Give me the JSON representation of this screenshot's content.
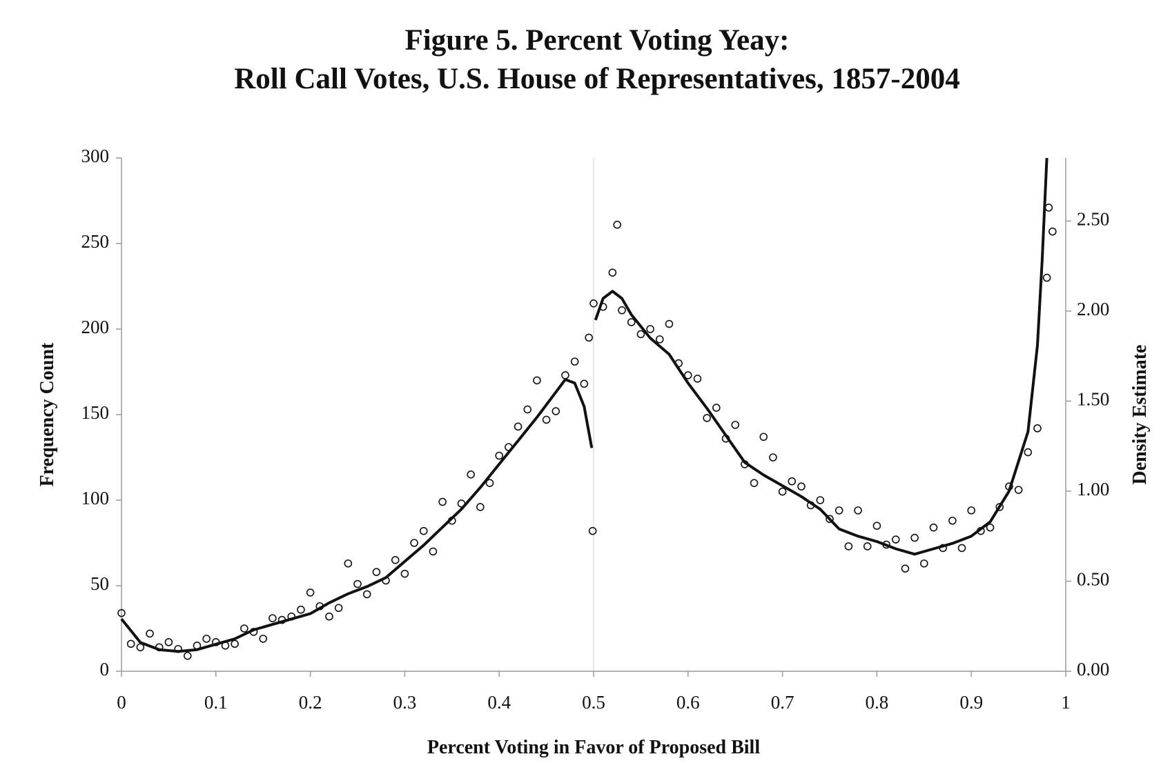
{
  "chart_data": {
    "type": "scatter",
    "title": [
      "Figure 5. Percent Voting Yeay:",
      "Roll Call Votes, U.S. House of Representatives, 1857-2004"
    ],
    "xlabel": "Percent Voting in Favor of Proposed Bill",
    "ylabel": "Frequency Count",
    "y2label": "Density Estimate",
    "xlim": [
      0,
      1
    ],
    "xticks": [
      0,
      0.1,
      0.2,
      0.3,
      0.4,
      0.5,
      0.6,
      0.7,
      0.8,
      0.9,
      1
    ],
    "ylim": [
      0,
      300
    ],
    "yticks": [
      0,
      50,
      100,
      150,
      200,
      250,
      300
    ],
    "y2lim": [
      0,
      2.85
    ],
    "y2ticks": [
      {
        "value": 0,
        "label": "0.00"
      },
      {
        "value": 0.5,
        "label": "0.50"
      },
      {
        "value": 1,
        "label": "1.00"
      },
      {
        "value": 1.5,
        "label": "1.50"
      },
      {
        "value": 2,
        "label": "2.00"
      },
      {
        "value": 2.5,
        "label": "2.50"
      }
    ],
    "vline": 0.5,
    "grid": false,
    "series": [
      {
        "type": "scatter",
        "color": "#111111",
        "x": [
          0,
          0.01,
          0.02,
          0.03,
          0.04,
          0.05,
          0.06,
          0.07,
          0.08,
          0.09,
          0.1,
          0.11,
          0.12,
          0.13,
          0.14,
          0.15,
          0.16,
          0.17,
          0.18,
          0.19,
          0.2,
          0.21,
          0.22,
          0.23,
          0.24,
          0.25,
          0.26,
          0.27,
          0.28,
          0.29,
          0.3,
          0.31,
          0.32,
          0.33,
          0.34,
          0.35,
          0.36,
          0.37,
          0.38,
          0.39,
          0.4,
          0.41,
          0.42,
          0.43,
          0.44,
          0.45,
          0.46,
          0.47,
          0.48,
          0.49,
          0.5,
          0.51,
          0.52,
          0.53,
          0.54,
          0.55,
          0.56,
          0.57,
          0.58,
          0.59,
          0.6,
          0.61,
          0.62,
          0.63,
          0.64,
          0.65,
          0.66,
          0.67,
          0.68,
          0.69,
          0.7,
          0.71,
          0.72,
          0.73,
          0.74,
          0.75,
          0.76,
          0.77,
          0.78,
          0.79,
          0.8,
          0.81,
          0.82,
          0.83,
          0.84,
          0.85,
          0.86,
          0.87,
          0.88,
          0.89,
          0.9,
          0.91,
          0.92,
          0.93,
          0.94,
          0.95,
          0.96,
          0.97,
          0.98,
          0.499,
          0.525,
          0.495,
          0.982,
          0.986
        ],
        "values": [
          34,
          16,
          14,
          22,
          14,
          17,
          13,
          9,
          15,
          19,
          17,
          15,
          16,
          25,
          23,
          19,
          31,
          30,
          32,
          36,
          46,
          38,
          32,
          37,
          63,
          51,
          45,
          58,
          53,
          65,
          57,
          75,
          82,
          70,
          99,
          88,
          98,
          115,
          96,
          110,
          126,
          131,
          143,
          153,
          170,
          147,
          152,
          173,
          181,
          168,
          215,
          213,
          233,
          211,
          204,
          197,
          200,
          194,
          203,
          180,
          173,
          171,
          148,
          154,
          136,
          144,
          121,
          110,
          137,
          125,
          105,
          111,
          108,
          97,
          100,
          89,
          94,
          73,
          94,
          73,
          85,
          74,
          77,
          60,
          78,
          63,
          84,
          72,
          88,
          72,
          94,
          82,
          84,
          96,
          108,
          106,
          128,
          142,
          230,
          82,
          261,
          195,
          271,
          257
        ]
      },
      {
        "type": "line",
        "axis": "y2",
        "color": "#111111",
        "x": [
          0,
          0.02,
          0.04,
          0.06,
          0.08,
          0.1,
          0.12,
          0.14,
          0.16,
          0.18,
          0.2,
          0.22,
          0.24,
          0.26,
          0.28,
          0.3,
          0.32,
          0.34,
          0.36,
          0.38,
          0.4,
          0.42,
          0.44,
          0.46,
          0.47,
          0.48,
          0.49,
          0.498,
          0.5,
          0.502,
          0.51,
          0.52,
          0.53,
          0.54,
          0.56,
          0.58,
          0.6,
          0.62,
          0.64,
          0.66,
          0.68,
          0.7,
          0.72,
          0.74,
          0.76,
          0.78,
          0.8,
          0.82,
          0.84,
          0.86,
          0.88,
          0.9,
          0.92,
          0.94,
          0.96,
          0.97,
          0.975,
          0.98
        ],
        "values": [
          0.29,
          0.16,
          0.12,
          0.11,
          0.12,
          0.15,
          0.18,
          0.23,
          0.26,
          0.29,
          0.32,
          0.38,
          0.43,
          0.47,
          0.52,
          0.61,
          0.7,
          0.8,
          0.9,
          1.02,
          1.15,
          1.28,
          1.41,
          1.55,
          1.62,
          1.6,
          1.47,
          1.24,
          null,
          1.95,
          2.07,
          2.11,
          2.07,
          1.98,
          1.85,
          1.76,
          1.6,
          1.46,
          1.31,
          1.16,
          1.09,
          1.03,
          0.97,
          0.9,
          0.79,
          0.75,
          0.72,
          0.68,
          0.65,
          0.68,
          0.71,
          0.75,
          0.83,
          1.0,
          1.33,
          1.81,
          2.28,
          2.85
        ]
      }
    ]
  }
}
